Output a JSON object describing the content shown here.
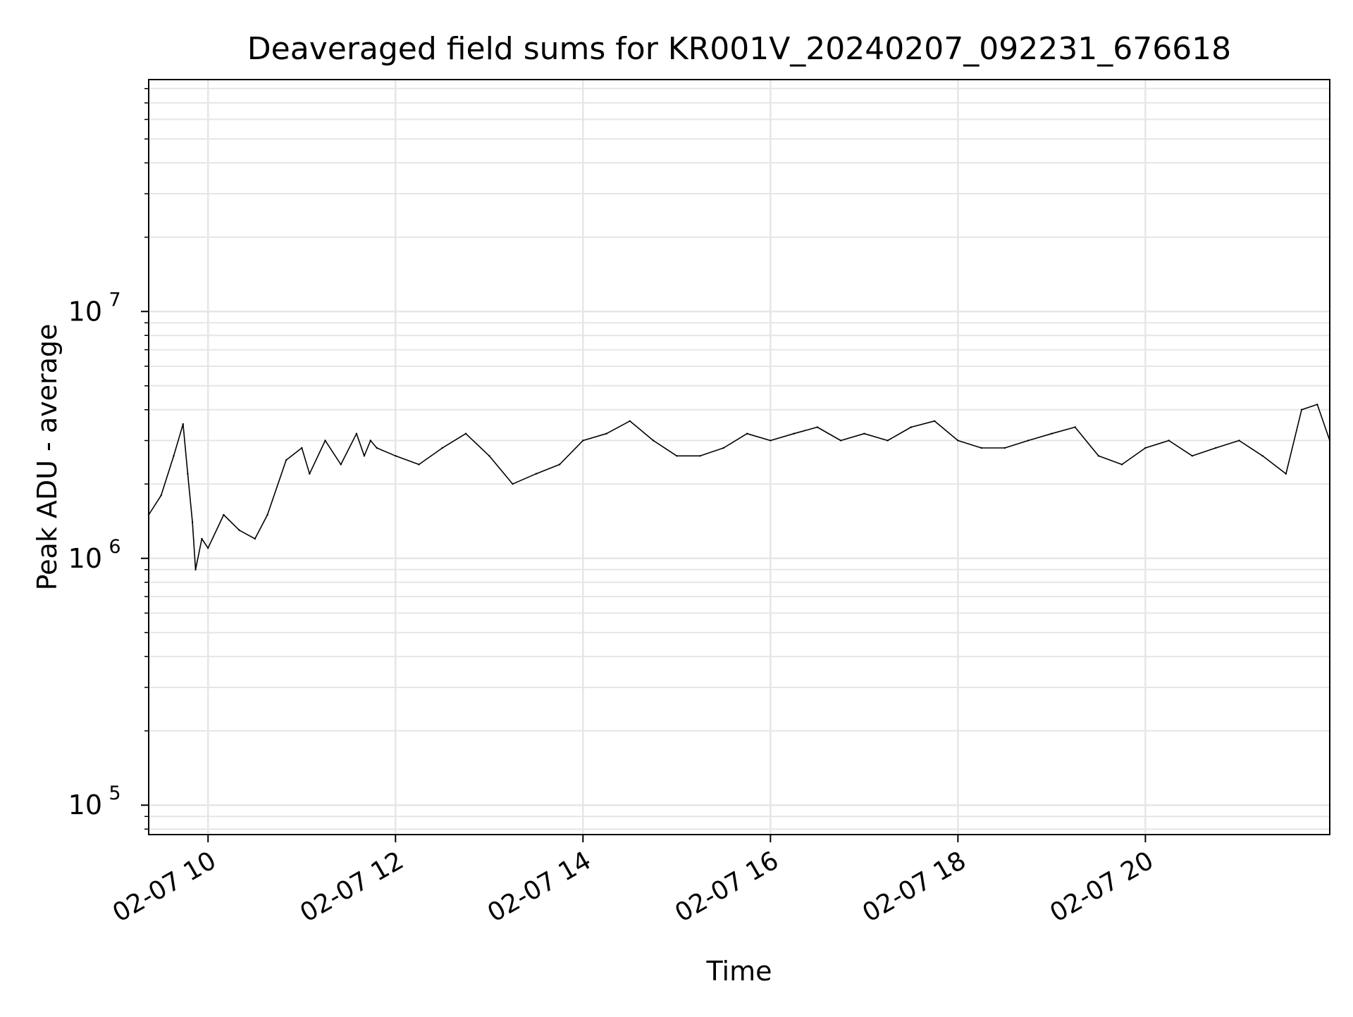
{
  "chart_data": {
    "type": "line",
    "title": "Deaveraged field sums for KR001V_20240207_092231_676618",
    "xlabel": "Time",
    "ylabel": "Peak ADU - average",
    "x_axis": {
      "kind": "time",
      "xlim": [
        "2024-02-07 09:22",
        "2024-02-07 21:58"
      ],
      "ticks": [
        {
          "t": "2024-02-07 10:00",
          "label": "02-07 10"
        },
        {
          "t": "2024-02-07 12:00",
          "label": "02-07 12"
        },
        {
          "t": "2024-02-07 14:00",
          "label": "02-07 14"
        },
        {
          "t": "2024-02-07 16:00",
          "label": "02-07 16"
        },
        {
          "t": "2024-02-07 18:00",
          "label": "02-07 18"
        },
        {
          "t": "2024-02-07 20:00",
          "label": "02-07 20"
        }
      ]
    },
    "y_axis": {
      "scale": "log",
      "ylim": [
        76000,
        87000000
      ],
      "ticks": [
        {
          "value": 100000,
          "base": "10",
          "exp": "5"
        },
        {
          "value": 1000000,
          "base": "10",
          "exp": "6"
        },
        {
          "value": 10000000,
          "base": "10",
          "exp": "7"
        }
      ]
    },
    "grid": true,
    "legend": "none",
    "series": [
      {
        "color": "#000000",
        "x": [
          "2024-02-07 09:22",
          "2024-02-07 09:30",
          "2024-02-07 09:38",
          "2024-02-07 09:44",
          "2024-02-07 09:47",
          "2024-02-07 09:50",
          "2024-02-07 09:52",
          "2024-02-07 09:56",
          "2024-02-07 10:00",
          "2024-02-07 10:10",
          "2024-02-07 10:20",
          "2024-02-07 10:30",
          "2024-02-07 10:38",
          "2024-02-07 10:50",
          "2024-02-07 11:00",
          "2024-02-07 11:05",
          "2024-02-07 11:15",
          "2024-02-07 11:25",
          "2024-02-07 11:35",
          "2024-02-07 11:40",
          "2024-02-07 11:44",
          "2024-02-07 11:48",
          "2024-02-07 12:00",
          "2024-02-07 12:15",
          "2024-02-07 12:30",
          "2024-02-07 12:45",
          "2024-02-07 13:00",
          "2024-02-07 13:15",
          "2024-02-07 13:30",
          "2024-02-07 13:45",
          "2024-02-07 14:00",
          "2024-02-07 14:15",
          "2024-02-07 14:30",
          "2024-02-07 14:45",
          "2024-02-07 15:00",
          "2024-02-07 15:15",
          "2024-02-07 15:30",
          "2024-02-07 15:45",
          "2024-02-07 16:00",
          "2024-02-07 16:15",
          "2024-02-07 16:30",
          "2024-02-07 16:45",
          "2024-02-07 17:00",
          "2024-02-07 17:15",
          "2024-02-07 17:30",
          "2024-02-07 17:45",
          "2024-02-07 18:00",
          "2024-02-07 18:15",
          "2024-02-07 18:30",
          "2024-02-07 18:45",
          "2024-02-07 19:00",
          "2024-02-07 19:15",
          "2024-02-07 19:30",
          "2024-02-07 19:45",
          "2024-02-07 20:00",
          "2024-02-07 20:15",
          "2024-02-07 20:30",
          "2024-02-07 20:45",
          "2024-02-07 21:00",
          "2024-02-07 21:15",
          "2024-02-07 21:30",
          "2024-02-07 21:40",
          "2024-02-07 21:50",
          "2024-02-07 21:58"
        ],
        "y": [
          1500000,
          1800000,
          2600000,
          3500000,
          2200000,
          1400000,
          900000,
          1200000,
          1100000,
          1500000,
          1300000,
          1200000,
          1500000,
          2500000,
          2800000,
          2200000,
          3000000,
          2400000,
          3200000,
          2600000,
          3000000,
          2800000,
          2600000,
          2400000,
          2800000,
          3200000,
          2600000,
          2000000,
          2200000,
          2400000,
          3000000,
          3200000,
          3600000,
          3000000,
          2600000,
          2600000,
          2800000,
          3200000,
          3000000,
          3200000,
          3400000,
          3000000,
          3200000,
          3000000,
          3400000,
          3600000,
          3000000,
          2800000,
          2800000,
          3000000,
          3200000,
          3400000,
          2600000,
          2400000,
          2800000,
          3000000,
          2600000,
          2800000,
          3000000,
          2600000,
          2200000,
          4000000,
          4200000,
          3000000
        ]
      }
    ]
  }
}
